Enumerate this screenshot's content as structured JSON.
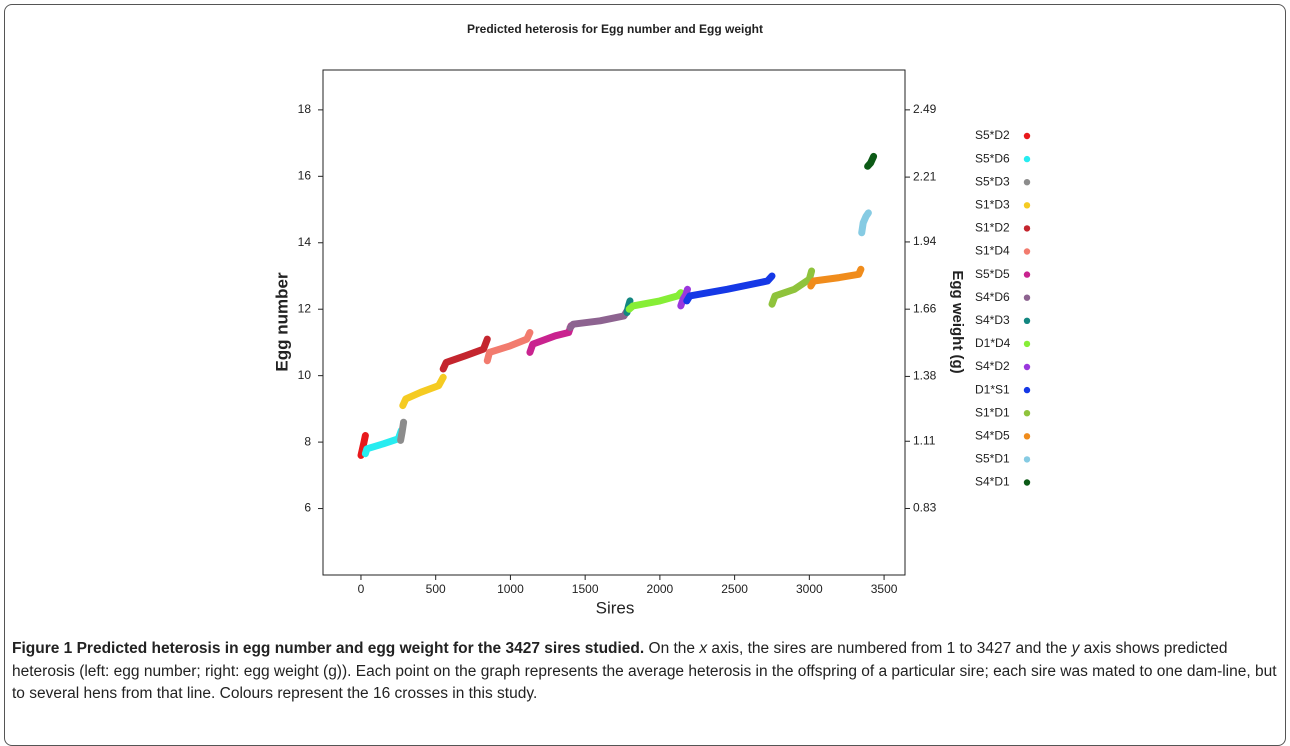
{
  "chart_data": {
    "type": "line",
    "title": "Predicted heterosis for Egg number and Egg weight",
    "x_label": "Sires",
    "y_label": "Egg number",
    "y2_label": "Egg weight (g)",
    "xlim": [
      -254,
      3640
    ],
    "xticks": [
      0,
      500,
      1000,
      1500,
      2000,
      2500,
      3000,
      3500
    ],
    "ylim": [
      4,
      19.2
    ],
    "yticks": [
      6,
      8,
      10,
      12,
      14,
      16,
      18
    ],
    "y2lim": [
      0.553,
      2.656
    ],
    "y2ticks": [
      0.83,
      1.11,
      1.38,
      1.66,
      1.94,
      2.21,
      2.49
    ],
    "series": [
      {
        "name": "S5*D2",
        "color": "#e8191c",
        "x": [
          0,
          10,
          20,
          30
        ],
        "values": [
          7.6,
          7.8,
          8.0,
          8.2
        ]
      },
      {
        "name": "S5*D6",
        "color": "#27ecf0",
        "x": [
          30,
          40,
          150,
          250,
          270
        ],
        "values": [
          7.65,
          7.8,
          7.95,
          8.1,
          8.35
        ]
      },
      {
        "name": "S5*D3",
        "color": "#8c8c8c",
        "x": [
          265,
          275,
          285
        ],
        "values": [
          8.05,
          8.3,
          8.6
        ]
      },
      {
        "name": "S1*D3",
        "color": "#f5cb22",
        "x": [
          280,
          300,
          400,
          520,
          550
        ],
        "values": [
          9.1,
          9.3,
          9.5,
          9.7,
          9.95
        ]
      },
      {
        "name": "S1*D2",
        "color": "#c4252e",
        "x": [
          550,
          570,
          700,
          820,
          845
        ],
        "values": [
          10.2,
          10.4,
          10.6,
          10.8,
          11.1
        ]
      },
      {
        "name": "S1*D4",
        "color": "#f27b6e",
        "x": [
          845,
          860,
          1000,
          1110,
          1130
        ],
        "values": [
          10.45,
          10.7,
          10.9,
          11.1,
          11.3
        ]
      },
      {
        "name": "S5*D5",
        "color": "#c9238f",
        "x": [
          1130,
          1150,
          1300,
          1390,
          1405
        ],
        "values": [
          10.7,
          10.95,
          11.2,
          11.3,
          11.5
        ]
      },
      {
        "name": "S4*D6",
        "color": "#8d6390",
        "x": [
          1400,
          1420,
          1600,
          1760,
          1780
        ],
        "values": [
          11.45,
          11.55,
          11.65,
          11.8,
          11.95
        ]
      },
      {
        "name": "S4*D3",
        "color": "#128680",
        "x": [
          1780,
          1790,
          1800
        ],
        "values": [
          11.9,
          12.1,
          12.25
        ]
      },
      {
        "name": "D1*D4",
        "color": "#86ee36",
        "x": [
          1795,
          1820,
          2000,
          2120,
          2140
        ],
        "values": [
          12.0,
          12.1,
          12.25,
          12.4,
          12.5
        ]
      },
      {
        "name": "S4*D2",
        "color": "#9a37dd",
        "x": [
          2140,
          2155,
          2175,
          2185
        ],
        "values": [
          12.1,
          12.3,
          12.45,
          12.6
        ]
      },
      {
        "name": "D1*S1",
        "color": "#1538e6",
        "x": [
          2180,
          2200,
          2450,
          2720,
          2750
        ],
        "values": [
          12.25,
          12.4,
          12.6,
          12.85,
          13.0
        ]
      },
      {
        "name": "S1*D1",
        "color": "#8fc33c",
        "x": [
          2750,
          2770,
          2900,
          3000,
          3015
        ],
        "values": [
          12.15,
          12.4,
          12.6,
          12.9,
          13.15
        ]
      },
      {
        "name": "S4*D5",
        "color": "#f08c1c",
        "x": [
          3010,
          3030,
          3200,
          3330,
          3345
        ],
        "values": [
          12.7,
          12.85,
          12.95,
          13.05,
          13.2
        ]
      },
      {
        "name": "S5*D1",
        "color": "#86cbe3",
        "x": [
          3350,
          3360,
          3380,
          3395
        ],
        "values": [
          14.3,
          14.6,
          14.8,
          14.9
        ]
      },
      {
        "name": "S4*D1",
        "color": "#0c5a16",
        "x": [
          3390,
          3410,
          3430
        ],
        "values": [
          16.3,
          16.4,
          16.6
        ]
      }
    ]
  },
  "caption": {
    "title": "Figure 1 Predicted heterosis in egg number and egg weight for the 3427 sires studied.",
    "body": [
      " On the ",
      "x",
      " axis, the sires are numbered from 1 to 3427 and the ",
      "y",
      " axis shows predicted heterosis (left: egg number; right: egg weight (g)). Each point on the graph represents the average heterosis in the offspring of a particular sire; each sire was mated to one dam-line, but to several hens from that line. Colours represent the 16 crosses in this study."
    ]
  }
}
